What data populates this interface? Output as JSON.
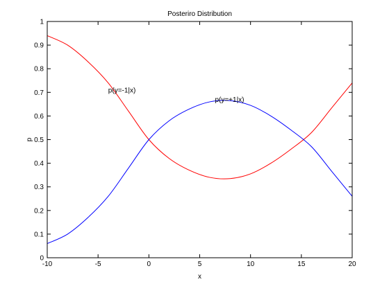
{
  "chart_data": {
    "type": "line",
    "title": "Posteriro Distribution",
    "xlabel": "x",
    "ylabel": "p",
    "xlim": [
      -10,
      20
    ],
    "ylim": [
      0,
      1
    ],
    "xticks": [
      -10,
      -5,
      0,
      5,
      10,
      15,
      20
    ],
    "yticks": [
      0,
      0.1,
      0.2,
      0.3,
      0.4,
      0.5,
      0.6,
      0.7,
      0.8,
      0.9,
      1
    ],
    "grid": false,
    "legend": "none",
    "series": [
      {
        "name": "p(y=-1|x)",
        "color": "#ff0000",
        "x": [
          -10,
          -8,
          -6,
          -4,
          -2,
          0,
          2,
          4,
          6,
          8,
          10,
          12,
          14,
          16,
          18,
          20
        ],
        "y": [
          0.94,
          0.9,
          0.83,
          0.74,
          0.62,
          0.5,
          0.42,
          0.37,
          0.34,
          0.335,
          0.355,
          0.4,
          0.46,
          0.53,
          0.635,
          0.74
        ]
      },
      {
        "name": "p(y=+1|x)",
        "color": "#0000ff",
        "x": [
          -10,
          -8,
          -6,
          -4,
          -2,
          0,
          2,
          4,
          6,
          8,
          10,
          12,
          14,
          16,
          18,
          20
        ],
        "y": [
          0.06,
          0.1,
          0.17,
          0.26,
          0.38,
          0.5,
          0.58,
          0.63,
          0.66,
          0.665,
          0.645,
          0.6,
          0.54,
          0.47,
          0.365,
          0.26
        ]
      }
    ],
    "annotations": [
      {
        "text": "p(y=-1|x)",
        "x": -4,
        "y": 0.7
      },
      {
        "text": "p(y=+1|x)",
        "x": 6.5,
        "y": 0.66
      }
    ]
  }
}
